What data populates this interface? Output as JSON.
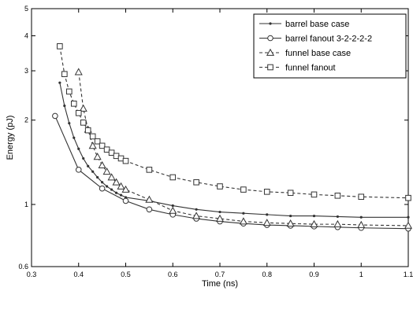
{
  "chart_data": {
    "type": "line",
    "xlabel": "Time (ns)",
    "ylabel": "Energy (pJ)",
    "xlim": [
      0.3,
      1.1
    ],
    "ylim": [
      0.6,
      5
    ],
    "xscale": "linear",
    "yscale": "log",
    "xticks": [
      0.3,
      0.4,
      0.5,
      0.6,
      0.7,
      0.8,
      0.9,
      1,
      1.1
    ],
    "xtick_labels": [
      "0.3",
      "0.4",
      "0.5",
      "0.6",
      "0.7",
      "0.8",
      "0.9",
      "1",
      "1.1"
    ],
    "yticks": [
      0.6,
      1,
      2,
      3,
      4,
      5
    ],
    "ytick_labels": [
      "0.6",
      "1",
      "2",
      "3",
      "4",
      "5"
    ],
    "grid": false,
    "legend_position": "top-right",
    "series": [
      {
        "name": "barrel base case",
        "line": "solid",
        "marker": "dot",
        "x": [
          0.36,
          0.37,
          0.38,
          0.39,
          0.4,
          0.41,
          0.42,
          0.43,
          0.44,
          0.45,
          0.46,
          0.47,
          0.48,
          0.49,
          0.5,
          0.55,
          0.6,
          0.65,
          0.7,
          0.75,
          0.8,
          0.85,
          0.9,
          0.95,
          1.0,
          1.1
        ],
        "y": [
          2.72,
          2.25,
          1.95,
          1.73,
          1.58,
          1.46,
          1.37,
          1.31,
          1.25,
          1.2,
          1.16,
          1.13,
          1.1,
          1.08,
          1.06,
          1.03,
          0.99,
          0.96,
          0.94,
          0.93,
          0.92,
          0.91,
          0.91,
          0.905,
          0.9,
          0.9
        ]
      },
      {
        "name": "barrel fanout 3-2-2-2-2",
        "line": "solid",
        "marker": "circle",
        "x": [
          0.35,
          0.4,
          0.45,
          0.5,
          0.55,
          0.6,
          0.65,
          0.7,
          0.75,
          0.8,
          0.85,
          0.9,
          0.95,
          1.0,
          1.1
        ],
        "y": [
          2.07,
          1.33,
          1.14,
          1.03,
          0.96,
          0.92,
          0.89,
          0.87,
          0.855,
          0.845,
          0.84,
          0.835,
          0.83,
          0.825,
          0.82
        ]
      },
      {
        "name": "funnel base case",
        "line": "dashed",
        "marker": "triangle",
        "x": [
          0.4,
          0.41,
          0.42,
          0.43,
          0.44,
          0.45,
          0.46,
          0.47,
          0.48,
          0.49,
          0.5,
          0.55,
          0.6,
          0.65,
          0.7,
          0.75,
          0.8,
          0.85,
          0.9,
          0.95,
          1.0,
          1.1
        ],
        "y": [
          2.97,
          2.2,
          1.85,
          1.62,
          1.48,
          1.38,
          1.31,
          1.25,
          1.2,
          1.16,
          1.13,
          1.04,
          0.95,
          0.91,
          0.89,
          0.87,
          0.86,
          0.855,
          0.85,
          0.85,
          0.845,
          0.84
        ]
      },
      {
        "name": "funnel fanout",
        "line": "dashed",
        "marker": "square",
        "x": [
          0.36,
          0.37,
          0.38,
          0.39,
          0.4,
          0.41,
          0.42,
          0.43,
          0.44,
          0.45,
          0.46,
          0.47,
          0.48,
          0.49,
          0.5,
          0.55,
          0.6,
          0.65,
          0.7,
          0.75,
          0.8,
          0.85,
          0.9,
          0.95,
          1.0,
          1.1
        ],
        "y": [
          3.67,
          2.92,
          2.53,
          2.29,
          2.12,
          1.96,
          1.84,
          1.75,
          1.68,
          1.62,
          1.57,
          1.53,
          1.49,
          1.46,
          1.43,
          1.33,
          1.25,
          1.2,
          1.16,
          1.13,
          1.11,
          1.1,
          1.085,
          1.075,
          1.065,
          1.055
        ]
      }
    ]
  }
}
